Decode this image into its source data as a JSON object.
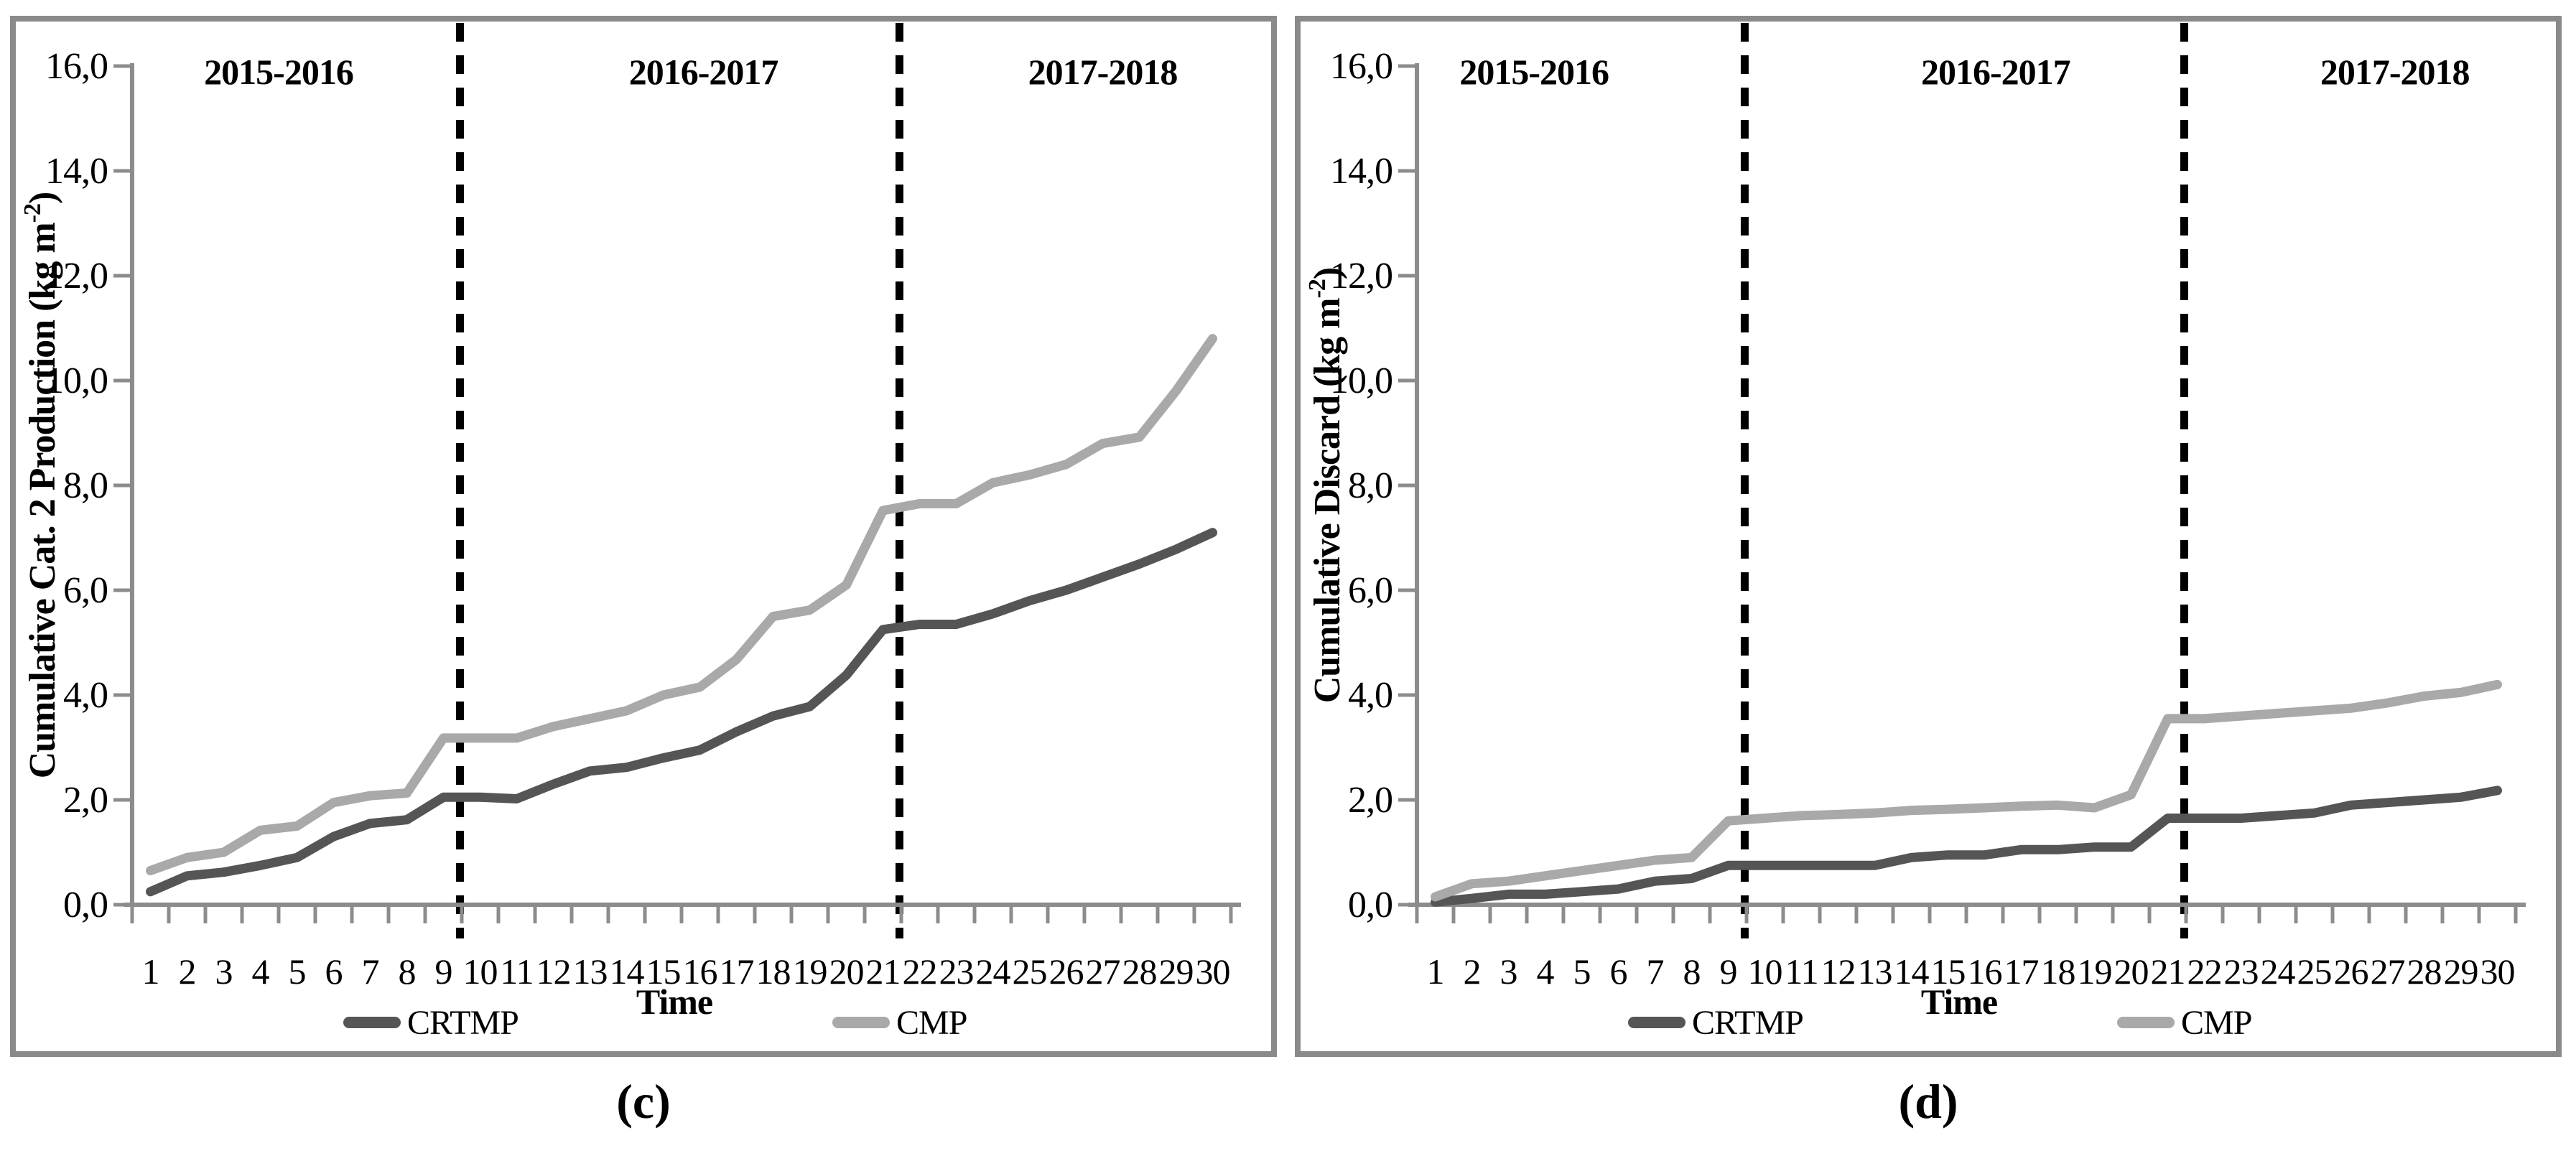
{
  "figure": {
    "background": "#ffffff",
    "panel_border_color": "#8a8a8a",
    "axis_color": "#8c8c8c",
    "divider_color": "#000000",
    "text_color": "#000000"
  },
  "chart_data": [
    {
      "type": "line",
      "caption": "(c)",
      "ylabel": "Cumulative Cat. 2 Production (kg m⁻²)",
      "ylabel_parts": {
        "base": "Cumulative Cat. 2 Production (kg m",
        "superscript": "-2",
        "close": ")"
      },
      "xlabel": "Time",
      "ylim": [
        0,
        16
      ],
      "ytick_step": 2,
      "ytick_labels": [
        "0,0",
        "2,0",
        "4,0",
        "6,0",
        "8,0",
        "10,0",
        "12,0",
        "14,0",
        "16,0"
      ],
      "x": [
        1,
        2,
        3,
        4,
        5,
        6,
        7,
        8,
        9,
        10,
        11,
        12,
        13,
        14,
        15,
        16,
        17,
        18,
        19,
        20,
        21,
        22,
        23,
        24,
        25,
        26,
        27,
        28,
        29,
        30
      ],
      "grid": false,
      "legend_position": "bottom-inside",
      "season_labels": [
        {
          "text": "2015-2016",
          "at": 4.5
        },
        {
          "text": "2016-2017",
          "at": 16.1
        },
        {
          "text": "2017-2018",
          "at": 27.0
        }
      ],
      "dividers_at": [
        9.45,
        21.45
      ],
      "series": [
        {
          "name": "CRTMP",
          "color": "#555555",
          "values": [
            0.25,
            0.55,
            0.62,
            0.75,
            0.9,
            1.3,
            1.55,
            1.62,
            2.05,
            2.05,
            2.02,
            2.3,
            2.55,
            2.62,
            2.8,
            2.95,
            3.3,
            3.6,
            3.78,
            4.38,
            5.25,
            5.35,
            5.35,
            5.55,
            5.8,
            6.0,
            6.25,
            6.5,
            6.78,
            7.1
          ]
        },
        {
          "name": "CMP",
          "color": "#a9a9a9",
          "values": [
            0.65,
            0.9,
            1.0,
            1.42,
            1.5,
            1.95,
            2.08,
            2.13,
            3.18,
            3.18,
            3.18,
            3.4,
            3.55,
            3.7,
            4.0,
            4.15,
            4.68,
            5.5,
            5.62,
            6.1,
            7.52,
            7.65,
            7.65,
            8.05,
            8.2,
            8.4,
            8.8,
            8.92,
            9.8,
            10.8
          ]
        }
      ]
    },
    {
      "type": "line",
      "caption": "(d)",
      "ylabel": "Cumulative Discard (kg m⁻²)",
      "ylabel_parts": {
        "base": "Cumulative Discard (kg m",
        "superscript": "-2",
        "close": ")"
      },
      "xlabel": "Time",
      "ylim": [
        0,
        16
      ],
      "ytick_step": 2,
      "ytick_labels": [
        "0,0",
        "2,0",
        "4,0",
        "6,0",
        "8,0",
        "10,0",
        "12,0",
        "14,0",
        "16,0"
      ],
      "x": [
        1,
        2,
        3,
        4,
        5,
        6,
        7,
        8,
        9,
        10,
        11,
        12,
        13,
        14,
        15,
        16,
        17,
        18,
        19,
        20,
        21,
        22,
        23,
        24,
        25,
        26,
        27,
        28,
        29,
        30
      ],
      "grid": false,
      "legend_position": "bottom-inside",
      "season_labels": [
        {
          "text": "2015-2016",
          "at": 3.7
        },
        {
          "text": "2016-2017",
          "at": 16.3
        },
        {
          "text": "2017-2018",
          "at": 27.2
        }
      ],
      "dividers_at": [
        9.45,
        21.45
      ],
      "series": [
        {
          "name": "CRTMP",
          "color": "#555555",
          "values": [
            0.05,
            0.12,
            0.2,
            0.2,
            0.25,
            0.3,
            0.45,
            0.5,
            0.75,
            0.75,
            0.75,
            0.75,
            0.75,
            0.9,
            0.95,
            0.95,
            1.05,
            1.05,
            1.1,
            1.1,
            1.65,
            1.65,
            1.65,
            1.7,
            1.75,
            1.9,
            1.95,
            2.0,
            2.05,
            2.18
          ]
        },
        {
          "name": "CMP",
          "color": "#a9a9a9",
          "values": [
            0.15,
            0.4,
            0.45,
            0.55,
            0.65,
            0.75,
            0.85,
            0.9,
            1.6,
            1.65,
            1.7,
            1.72,
            1.75,
            1.8,
            1.82,
            1.85,
            1.88,
            1.9,
            1.85,
            2.1,
            3.55,
            3.55,
            3.6,
            3.65,
            3.7,
            3.75,
            3.85,
            3.98,
            4.05,
            4.2
          ]
        }
      ]
    }
  ]
}
